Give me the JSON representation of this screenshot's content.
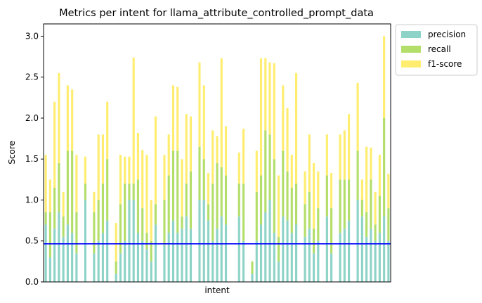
{
  "chart_data": {
    "type": "bar",
    "stacked": true,
    "title": "Metrics per intent for llama_attribute_controlled_prompt_data",
    "xlabel": "intent",
    "ylabel": "Score",
    "ylim": [
      0,
      3.15
    ],
    "yticks": [
      "0.0",
      "0.5",
      "1.0",
      "1.5",
      "2.0",
      "2.5",
      "3.0"
    ],
    "grid": false,
    "legend_position": "outside-top-right",
    "reference_line": {
      "y": 0.465,
      "color": "#0000ff"
    },
    "colors": {
      "precision": "#8dd3c7",
      "recall": "#b3de69",
      "f1-score": "#ffed6f",
      "reference": "#0000ff"
    },
    "series": [
      {
        "name": "precision",
        "values": [
          0.7,
          0.3,
          0.65,
          0.85,
          0.55,
          0.7,
          0.6,
          0.35,
          0,
          1,
          0,
          0.35,
          0.5,
          0.6,
          0.75,
          0,
          0.1,
          0.35,
          0.5,
          1,
          1,
          0.6,
          0.5,
          0.4,
          0.25,
          0.7,
          0,
          0.45,
          0.6,
          0.75,
          0.6,
          0.65,
          0.8,
          0.65,
          0,
          1,
          1,
          0.75,
          0.5,
          0.65,
          0.8,
          0.7,
          0,
          0,
          0.8,
          0.5,
          0,
          0.1,
          0.5,
          0.7,
          0.85,
          1,
          0.6,
          0.25,
          0.8,
          0.75,
          0.6,
          0.7,
          0,
          0.55,
          0.65,
          0.35,
          0.5,
          0,
          0.8,
          0.35,
          0,
          0.6,
          0.65,
          0.75,
          0,
          1,
          0.8,
          0.55,
          0.65,
          0.5,
          0.6,
          0.8,
          0.5
        ]
      },
      {
        "name": "recall",
        "values": [
          0.15,
          0.55,
          0.5,
          0.6,
          0.25,
          0.9,
          1,
          0.5,
          0,
          0.2,
          0,
          0.5,
          0.5,
          0.6,
          0.75,
          0,
          0.15,
          0.6,
          0.7,
          0.2,
          0.2,
          0.65,
          0.4,
          0.2,
          0.25,
          0.25,
          0,
          0.55,
          0.7,
          0.85,
          1,
          0.15,
          0.4,
          0.7,
          0,
          0.65,
          0.5,
          0.2,
          0.7,
          0.8,
          0.6,
          0.6,
          0,
          0,
          0.4,
          0.7,
          0,
          0.15,
          0.6,
          0.6,
          1,
          0.8,
          0.9,
          0.3,
          0.8,
          0.6,
          0.55,
          0.5,
          0,
          0.4,
          0.45,
          0.3,
          0.4,
          0,
          0.5,
          0.55,
          0,
          0.65,
          0.6,
          0.5,
          0,
          0.6,
          0.2,
          0.3,
          0.6,
          0.2,
          0.45,
          1.2,
          0.4
        ]
      },
      {
        "name": "f1-score",
        "values": [
          0.7,
          0.4,
          1.05,
          1.1,
          0.3,
          0.8,
          0.75,
          0.7,
          0,
          0.33,
          0,
          0.25,
          0.8,
          0.6,
          0.7,
          0,
          0.47,
          0.6,
          0.33,
          0.33,
          1.54,
          0.57,
          0.71,
          0.95,
          0.5,
          1.07,
          0,
          0.55,
          0.5,
          0.8,
          0.78,
          0.7,
          0.85,
          0.67,
          0,
          1.03,
          0.9,
          0.38,
          0.65,
          0.33,
          1.33,
          0.6,
          0,
          0,
          0.38,
          0.67,
          0,
          0,
          0.5,
          1.43,
          0.88,
          0.88,
          1.17,
          0.75,
          0.8,
          0.77,
          0.4,
          1.35,
          0,
          0.4,
          0.7,
          0.8,
          0.45,
          0,
          0.5,
          0.43,
          0,
          0.55,
          0.6,
          0.8,
          0,
          0.83,
          0.25,
          0.8,
          0.39,
          0.4,
          0.5,
          1,
          0.42
        ]
      }
    ]
  }
}
